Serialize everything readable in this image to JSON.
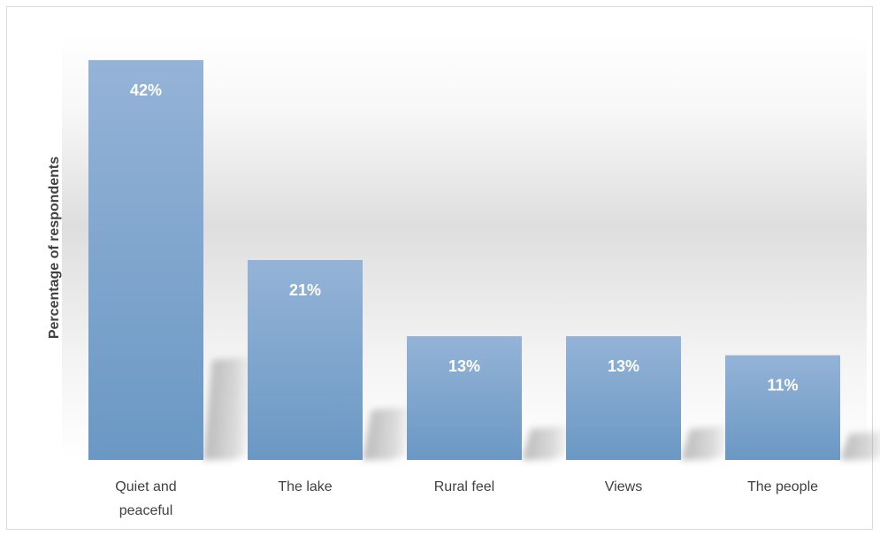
{
  "chart_data": {
    "type": "bar",
    "title": "",
    "xlabel": "",
    "ylabel": "Percentage of respondents",
    "categories": [
      [
        "Quiet and",
        "peaceful"
      ],
      [
        "The lake"
      ],
      [
        "Rural feel"
      ],
      [
        "Views"
      ],
      [
        "The people"
      ]
    ],
    "values": [
      42,
      21,
      13,
      13,
      11
    ],
    "data_labels": [
      "42%",
      "21%",
      "13%",
      "13%",
      "11%"
    ],
    "ylim": [
      0,
      42
    ],
    "grid": false,
    "legend": "none",
    "colors": {
      "bar_top": "#95b3d7",
      "bar_bottom": "#6a98c4",
      "shadow": "#8a8a8a",
      "plot_bg_mid": "#dedede",
      "border": "#d9d9d9",
      "text": "#404040"
    }
  }
}
